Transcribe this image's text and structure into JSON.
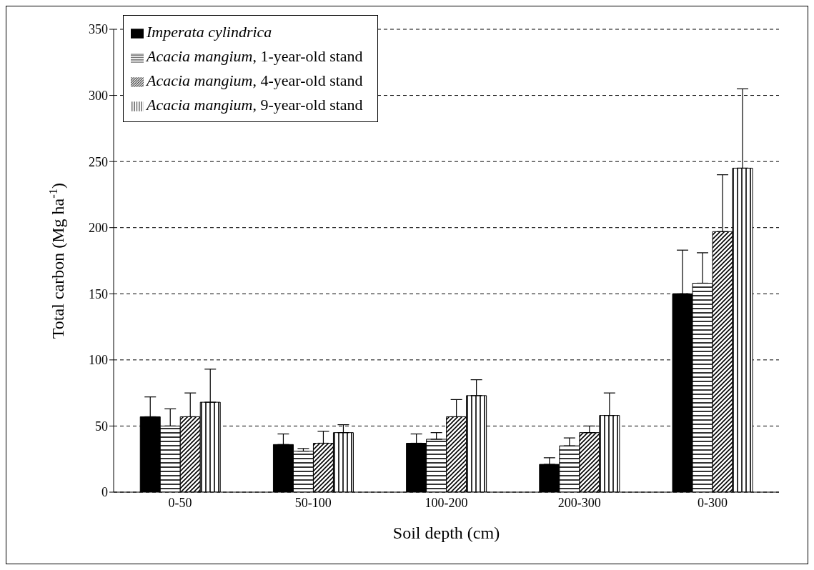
{
  "chart_data": {
    "type": "bar",
    "xlabel": "Soil depth (cm)",
    "ylabel": "Total carbon (Mg ha$^{-1}$)",
    "categories": [
      "0-50",
      "50-100",
      "100-200",
      "200-300",
      "0-300"
    ],
    "series": [
      {
        "name": "Imperata cylindrica",
        "color": "#000000",
        "values": [
          57,
          36,
          37,
          21,
          150
        ],
        "errors": [
          [
            57,
            72
          ],
          [
            36,
            44
          ],
          [
            37,
            44
          ],
          [
            21,
            26
          ],
          [
            150,
            183
          ]
        ]
      },
      {
        "name": "Acacia mangium, 1-year-old stand",
        "color": "#000000",
        "values": [
          50,
          31,
          40,
          35,
          158
        ],
        "errors": [
          [
            50,
            63
          ],
          [
            31,
            33
          ],
          [
            40,
            45
          ],
          [
            35,
            41
          ],
          [
            158,
            181
          ]
        ]
      },
      {
        "name": "Acacia mangium, 4-year-old stand",
        "color": "#000000",
        "values": [
          57,
          37,
          57,
          45,
          197
        ],
        "errors": [
          [
            57,
            75
          ],
          [
            37,
            46
          ],
          [
            57,
            70
          ],
          [
            45,
            50
          ],
          [
            197,
            240
          ]
        ]
      },
      {
        "name": "Acacia mangium, 9-year-old stand",
        "color": "#000000",
        "values": [
          68,
          45,
          73,
          58,
          245
        ],
        "errors": [
          [
            68,
            93
          ],
          [
            45,
            51
          ],
          [
            73,
            85
          ],
          [
            58,
            75
          ],
          [
            245,
            305
          ]
        ]
      }
    ],
    "ylim": [
      0,
      350
    ],
    "yticks": [
      0,
      50,
      100,
      150,
      200,
      250,
      300,
      350
    ],
    "grid": "y",
    "legend": "top left"
  }
}
